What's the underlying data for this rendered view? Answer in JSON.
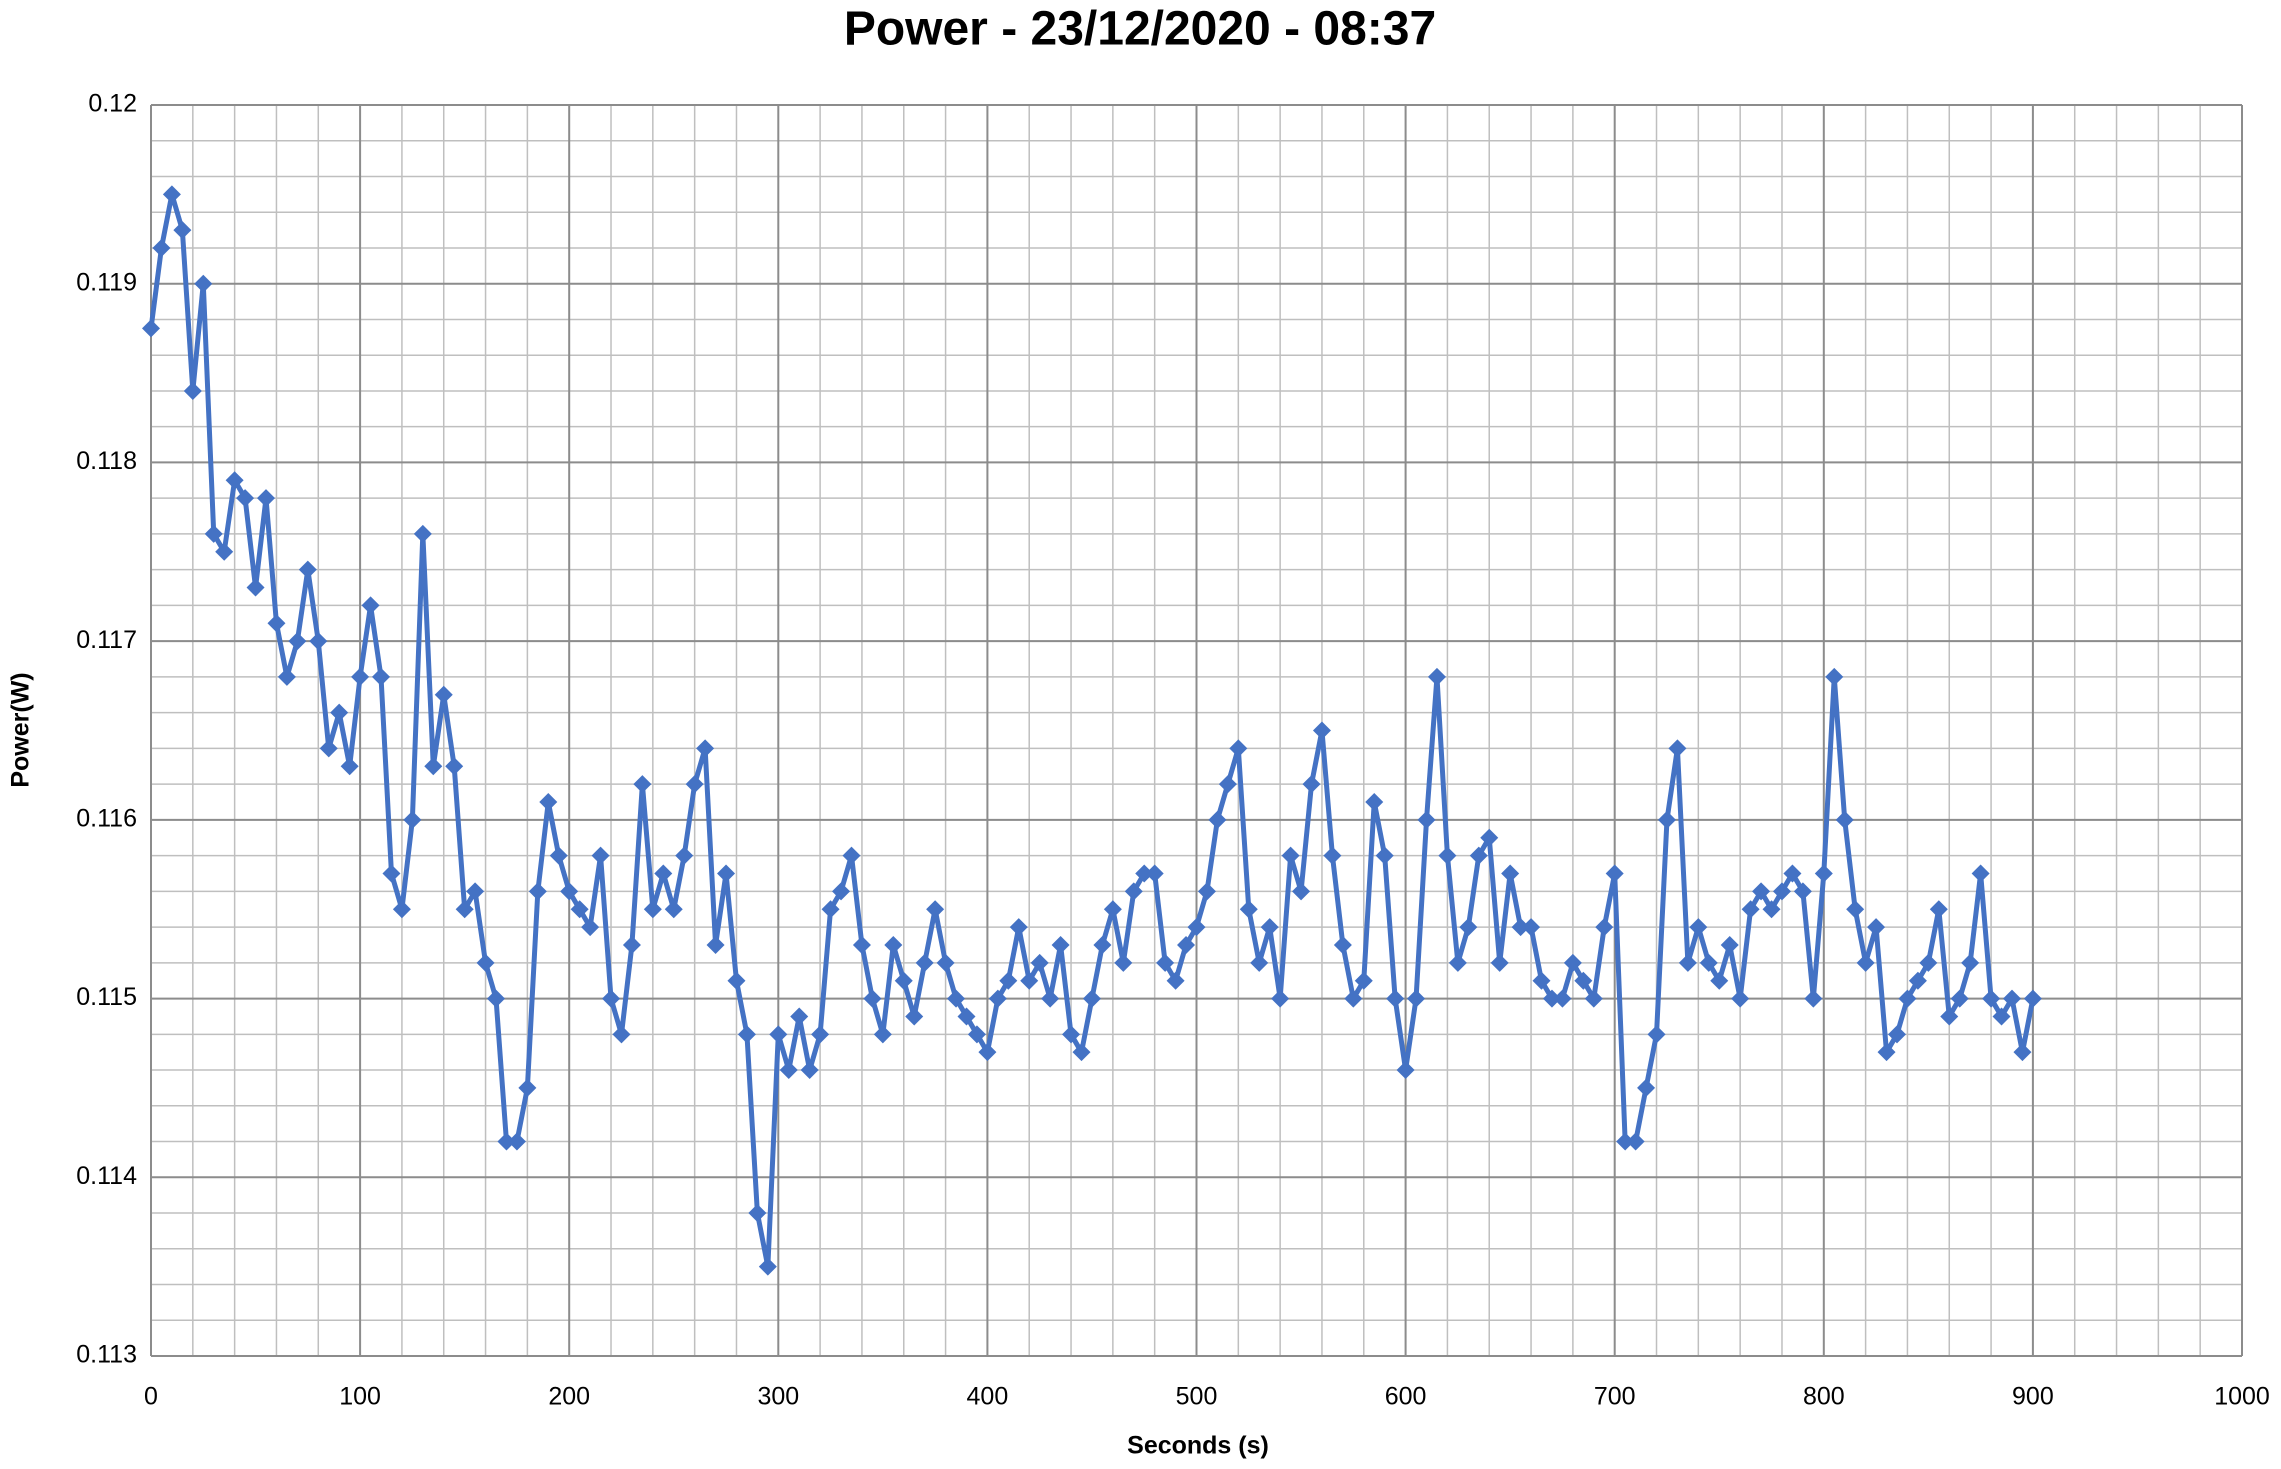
{
  "chart_data": {
    "type": "line",
    "title": "Power - 23/12/2020 - 08:37",
    "x_label": "Seconds (s)",
    "y_label": "Power(W)",
    "color": "#4472c4",
    "marker": "diamond",
    "xlim": [
      0,
      1000
    ],
    "xticks": [
      0,
      100,
      200,
      300,
      400,
      500,
      600,
      700,
      800,
      900,
      1000
    ],
    "ylim": [
      0.113,
      0.12
    ],
    "yticks": [
      0.113,
      0.114,
      0.115,
      0.116,
      0.117,
      0.118,
      0.119,
      0.12
    ],
    "grid": true,
    "minor_grid_step_x": 20,
    "minor_grid_step_y": 0.0002,
    "x": [
      0,
      5,
      10,
      15,
      20,
      25,
      30,
      35,
      40,
      45,
      50,
      55,
      60,
      65,
      70,
      75,
      80,
      85,
      90,
      95,
      100,
      105,
      110,
      115,
      120,
      125,
      130,
      135,
      140,
      145,
      150,
      155,
      160,
      165,
      170,
      175,
      180,
      185,
      190,
      195,
      200,
      205,
      210,
      215,
      220,
      225,
      230,
      235,
      240,
      245,
      250,
      255,
      260,
      265,
      270,
      275,
      280,
      285,
      290,
      295,
      300,
      305,
      310,
      315,
      320,
      325,
      330,
      335,
      340,
      345,
      350,
      355,
      360,
      365,
      370,
      375,
      380,
      385,
      390,
      395,
      400,
      405,
      410,
      415,
      420,
      425,
      430,
      435,
      440,
      445,
      450,
      455,
      460,
      465,
      470,
      475,
      480,
      485,
      490,
      495,
      500,
      505,
      510,
      515,
      520,
      525,
      530,
      535,
      540,
      545,
      550,
      555,
      560,
      565,
      570,
      575,
      580,
      585,
      590,
      595,
      600,
      605,
      610,
      615,
      620,
      625,
      630,
      635,
      640,
      645,
      650,
      655,
      660,
      665,
      670,
      675,
      680,
      685,
      690,
      695,
      700,
      705,
      710,
      715,
      720,
      725,
      730,
      735,
      740,
      745,
      750,
      755,
      760,
      765,
      770,
      775,
      780,
      785,
      790,
      795,
      800,
      805,
      810,
      815,
      820,
      825,
      830,
      835,
      840,
      845,
      850,
      855,
      860,
      865,
      870,
      875,
      880,
      885,
      890,
      895,
      900
    ],
    "values": [
      0.11875,
      0.1192,
      0.1195,
      0.1193,
      0.1184,
      0.119,
      0.1176,
      0.1175,
      0.1179,
      0.1178,
      0.1173,
      0.1178,
      0.1171,
      0.1168,
      0.117,
      0.1174,
      0.117,
      0.1164,
      0.1166,
      0.1163,
      0.1168,
      0.1172,
      0.1168,
      0.1157,
      0.1155,
      0.116,
      0.1176,
      0.1163,
      0.1167,
      0.1163,
      0.1155,
      0.1156,
      0.1152,
      0.115,
      0.1142,
      0.1142,
      0.1145,
      0.1156,
      0.1161,
      0.1158,
      0.1156,
      0.1155,
      0.1154,
      0.1158,
      0.115,
      0.1148,
      0.1153,
      0.1162,
      0.1155,
      0.1157,
      0.1155,
      0.1158,
      0.1162,
      0.1164,
      0.1153,
      0.1157,
      0.1151,
      0.1148,
      0.1138,
      0.1135,
      0.1148,
      0.1146,
      0.1149,
      0.1146,
      0.1148,
      0.1155,
      0.1156,
      0.1158,
      0.1153,
      0.115,
      0.1148,
      0.1153,
      0.1151,
      0.1149,
      0.1152,
      0.1155,
      0.1152,
      0.115,
      0.1149,
      0.1148,
      0.1147,
      0.115,
      0.1151,
      0.1154,
      0.1151,
      0.1152,
      0.115,
      0.1153,
      0.1148,
      0.1147,
      0.115,
      0.1153,
      0.1155,
      0.1152,
      0.1156,
      0.1157,
      0.1157,
      0.1152,
      0.1151,
      0.1153,
      0.1154,
      0.1156,
      0.116,
      0.1162,
      0.1164,
      0.1155,
      0.1152,
      0.1154,
      0.115,
      0.1158,
      0.1156,
      0.1162,
      0.1165,
      0.1158,
      0.1153,
      0.115,
      0.1151,
      0.1161,
      0.1158,
      0.115,
      0.1146,
      0.115,
      0.116,
      0.1168,
      0.1158,
      0.1152,
      0.1154,
      0.1158,
      0.1159,
      0.1152,
      0.1157,
      0.1154,
      0.1154,
      0.1151,
      0.115,
      0.115,
      0.1152,
      0.1151,
      0.115,
      0.1154,
      0.1157,
      0.1142,
      0.1142,
      0.1145,
      0.1148,
      0.116,
      0.1164,
      0.1152,
      0.1154,
      0.1152,
      0.1151,
      0.1153,
      0.115,
      0.1155,
      0.1156,
      0.1155,
      0.1156,
      0.1157,
      0.1156,
      0.115,
      0.1157,
      0.1168,
      0.116,
      0.1155,
      0.1152,
      0.1154,
      0.1147,
      0.1148,
      0.115,
      0.1151,
      0.1152,
      0.1155,
      0.1149,
      0.115,
      0.1152,
      0.1157,
      0.115,
      0.1149,
      0.115,
      0.1147,
      0.115
    ]
  }
}
